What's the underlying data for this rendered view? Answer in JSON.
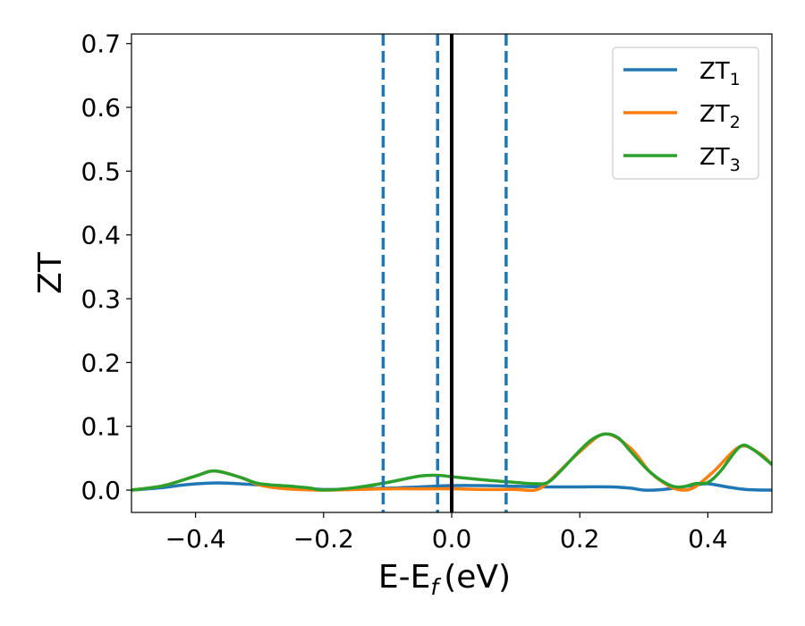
{
  "chart_data": {
    "type": "line",
    "xlabel": "E-E",
    "xlabel_subscript": "f",
    "xlabel_unit": "(eV)",
    "ylabel": "ZT",
    "xlim": [
      -0.5,
      0.5
    ],
    "ylim": [
      -0.035,
      0.715
    ],
    "grid": false,
    "legend_position": "top-right",
    "x_ticks": [
      -0.4,
      -0.2,
      0.0,
      0.2,
      0.4
    ],
    "x_tick_labels": [
      "−0.4",
      "−0.2",
      "0.0",
      "0.2",
      "0.4"
    ],
    "y_ticks": [
      0.0,
      0.1,
      0.2,
      0.3,
      0.4,
      0.5,
      0.6,
      0.7
    ],
    "y_tick_labels": [
      "0.0",
      "0.1",
      "0.2",
      "0.3",
      "0.4",
      "0.5",
      "0.6",
      "0.7"
    ],
    "reference_lines": [
      {
        "x": 0.0,
        "style": "solid",
        "color": "#000000"
      },
      {
        "x": -0.107,
        "style": "dashed",
        "color": "#1f77b4"
      },
      {
        "x": -0.022,
        "style": "dashed",
        "color": "#1f77b4"
      },
      {
        "x": 0.085,
        "style": "dashed",
        "color": "#1f77b4"
      }
    ],
    "series": [
      {
        "name": "ZT",
        "name_subscript": "1",
        "color": "#1f77b4",
        "x": [
          -0.5,
          -0.45,
          -0.42,
          -0.38,
          -0.35,
          -0.3,
          -0.25,
          -0.2,
          -0.15,
          -0.1,
          -0.05,
          0.0,
          0.05,
          0.1,
          0.15,
          0.2,
          0.25,
          0.28,
          0.3,
          0.33,
          0.36,
          0.38,
          0.4,
          0.43,
          0.46,
          0.5
        ],
        "y": [
          0.0,
          0.004,
          0.008,
          0.011,
          0.011,
          0.008,
          0.005,
          0.001,
          0.002,
          0.003,
          0.005,
          0.007,
          0.007,
          0.006,
          0.005,
          0.005,
          0.005,
          0.003,
          0.0,
          0.001,
          0.005,
          0.008,
          0.01,
          0.005,
          0.001,
          0.0
        ]
      },
      {
        "name": "ZT",
        "name_subscript": "2",
        "color": "#ff7f0e",
        "x": [
          -0.5,
          -0.45,
          -0.4,
          -0.37,
          -0.33,
          -0.3,
          -0.27,
          -0.24,
          -0.2,
          -0.15,
          -0.1,
          -0.05,
          0.0,
          0.05,
          0.1,
          0.13,
          0.15,
          0.2,
          0.24,
          0.28,
          0.31,
          0.34,
          0.36,
          0.38,
          0.41,
          0.45,
          0.48,
          0.5
        ],
        "y": [
          0.0,
          0.007,
          0.022,
          0.03,
          0.02,
          0.008,
          0.003,
          0.001,
          0.0,
          0.001,
          0.002,
          0.002,
          0.002,
          0.001,
          0.001,
          0.0,
          0.012,
          0.06,
          0.088,
          0.065,
          0.028,
          0.006,
          0.0,
          0.005,
          0.03,
          0.068,
          0.058,
          0.04
        ]
      },
      {
        "name": "ZT",
        "name_subscript": "3",
        "color": "#2ca02c",
        "x": [
          -0.5,
          -0.45,
          -0.4,
          -0.37,
          -0.33,
          -0.3,
          -0.25,
          -0.22,
          -0.2,
          -0.15,
          -0.1,
          -0.05,
          -0.02,
          0.0,
          0.05,
          0.1,
          0.13,
          0.15,
          0.17,
          0.2,
          0.22,
          0.24,
          0.26,
          0.28,
          0.31,
          0.34,
          0.36,
          0.38,
          0.4,
          0.42,
          0.45,
          0.47,
          0.5
        ],
        "y": [
          0.0,
          0.007,
          0.022,
          0.03,
          0.02,
          0.01,
          0.006,
          0.003,
          0.0,
          0.004,
          0.012,
          0.022,
          0.023,
          0.021,
          0.016,
          0.012,
          0.01,
          0.012,
          0.03,
          0.062,
          0.08,
          0.088,
          0.082,
          0.06,
          0.028,
          0.008,
          0.005,
          0.01,
          0.012,
          0.03,
          0.068,
          0.064,
          0.04
        ]
      }
    ]
  }
}
